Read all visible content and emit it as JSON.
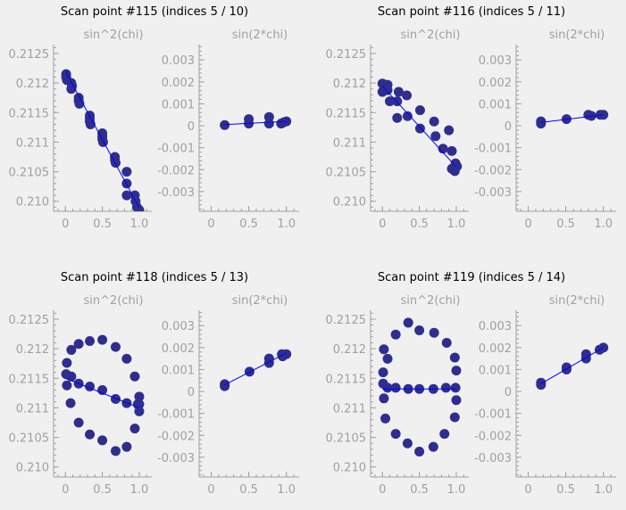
{
  "style": {
    "background": "#f0f0f0",
    "marker_color": "#2e2e8f",
    "fit_color": "#0000ff",
    "axis_color": "#a0a0a0"
  },
  "chart_data": [
    {
      "type": "scatter",
      "title": "Scan point #115 (indices 5 / 10)",
      "subplots": [
        {
          "title": "sin^2(chi)",
          "xlim": [
            -0.16,
            1.17
          ],
          "ylim": [
            0.20983,
            0.21265
          ],
          "xticks": [
            "0",
            "0.5",
            "1.0"
          ],
          "yticks": [
            "0.2125",
            "0.212",
            "0.2115",
            "0.211",
            "0.2105",
            "0.210"
          ],
          "points": [
            [
              0.01,
              0.21215
            ],
            [
              0.01,
              0.2121
            ],
            [
              0.02,
              0.21205
            ],
            [
              0.08,
              0.212
            ],
            [
              0.08,
              0.2119
            ],
            [
              0.09,
              0.21195
            ],
            [
              0.18,
              0.21175
            ],
            [
              0.18,
              0.2117
            ],
            [
              0.19,
              0.21165
            ],
            [
              0.33,
              0.21145
            ],
            [
              0.33,
              0.2114
            ],
            [
              0.33,
              0.21135
            ],
            [
              0.34,
              0.2113
            ],
            [
              0.5,
              0.21115
            ],
            [
              0.5,
              0.2111
            ],
            [
              0.5,
              0.21105
            ],
            [
              0.51,
              0.211
            ],
            [
              0.67,
              0.21075
            ],
            [
              0.67,
              0.2107
            ],
            [
              0.68,
              0.21065
            ],
            [
              0.83,
              0.2105
            ],
            [
              0.83,
              0.2103
            ],
            [
              0.83,
              0.2101
            ],
            [
              0.94,
              0.2101
            ],
            [
              0.95,
              0.21
            ],
            [
              0.97,
              0.2099
            ],
            [
              1.0,
              0.20985
            ]
          ],
          "fit": [
            [
              0.0,
              0.2122
            ],
            [
              1.0,
              0.20989
            ]
          ]
        },
        {
          "title": "sin(2*chi)",
          "xlim": [
            -0.16,
            1.17
          ],
          "ylim": [
            -0.0039,
            0.0037
          ],
          "xticks": [
            "0",
            "0.5",
            "1.0"
          ],
          "yticks": [
            "0.003",
            "0.002",
            "0.001",
            "0",
            "-0.001",
            "-0.002",
            "-0.003"
          ],
          "points": [
            [
              0.18,
              3e-05
            ],
            [
              0.5,
              0.0001
            ],
            [
              0.5,
              0.0003
            ],
            [
              0.77,
              0.0001
            ],
            [
              0.77,
              0.0004
            ],
            [
              0.93,
              0.0001
            ],
            [
              0.96,
              0.00015
            ],
            [
              1.0,
              0.0002
            ]
          ],
          "fit": [
            [
              0.18,
              5e-05
            ],
            [
              1.0,
              0.0002
            ]
          ]
        }
      ]
    },
    {
      "type": "scatter",
      "title": "Scan point #116 (indices 5 / 11)",
      "subplots": [
        {
          "title": "sin^2(chi)",
          "xlim": [
            -0.16,
            1.17
          ],
          "ylim": [
            0.20983,
            0.21265
          ],
          "xticks": [
            "0",
            "0.5",
            "1.0"
          ],
          "yticks": [
            "0.2125",
            "0.212",
            "0.2115",
            "0.211",
            "0.2105",
            "0.210"
          ],
          "points": [
            [
              0.0,
              0.21199
            ],
            [
              0.02,
              0.21195
            ],
            [
              0.07,
              0.21197
            ],
            [
              0.0,
              0.21185
            ],
            [
              0.07,
              0.21188
            ],
            [
              0.1,
              0.21169
            ],
            [
              0.2,
              0.21169
            ],
            [
              0.22,
              0.21185
            ],
            [
              0.33,
              0.21179
            ],
            [
              0.34,
              0.21144
            ],
            [
              0.2,
              0.21141
            ],
            [
              0.51,
              0.21154
            ],
            [
              0.51,
              0.21123
            ],
            [
              0.7,
              0.21135
            ],
            [
              0.72,
              0.2111
            ],
            [
              0.9,
              0.2112
            ],
            [
              0.82,
              0.21089
            ],
            [
              0.94,
              0.21085
            ],
            [
              0.99,
              0.21064
            ],
            [
              0.98,
              0.21051
            ],
            [
              0.94,
              0.21055
            ],
            [
              1.01,
              0.21059
            ]
          ],
          "fit": [
            [
              0.0,
              0.21195
            ],
            [
              1.0,
              0.21058
            ]
          ]
        },
        {
          "title": "sin(2*chi)",
          "xlim": [
            -0.16,
            1.17
          ],
          "ylim": [
            -0.0039,
            0.0037
          ],
          "xticks": [
            "0",
            "0.5",
            "1.0"
          ],
          "yticks": [
            "0.003",
            "0.002",
            "0.001",
            "0",
            "-0.001",
            "-0.002",
            "-0.003"
          ],
          "points": [
            [
              0.17,
              0.0002
            ],
            [
              0.17,
              0.0001
            ],
            [
              0.51,
              0.0003
            ],
            [
              0.8,
              0.0005
            ],
            [
              0.84,
              0.00045
            ],
            [
              0.96,
              0.0005
            ],
            [
              1.0,
              0.0005
            ]
          ],
          "fit": [
            [
              0.17,
              0.00015
            ],
            [
              1.0,
              0.0005
            ]
          ]
        }
      ]
    },
    {
      "type": "scatter",
      "title": "Scan point #118 (indices 5 / 13)",
      "subplots": [
        {
          "title": "sin^2(chi)",
          "xlim": [
            -0.16,
            1.17
          ],
          "ylim": [
            0.20983,
            0.21265
          ],
          "xticks": [
            "0",
            "0.5",
            "1.0"
          ],
          "yticks": [
            "0.2125",
            "0.212",
            "0.2115",
            "0.211",
            "0.2105",
            "0.210"
          ],
          "points": [
            [
              0.02,
              0.21176
            ],
            [
              0.08,
              0.21198
            ],
            [
              0.18,
              0.21208
            ],
            [
              0.33,
              0.21213
            ],
            [
              0.5,
              0.21215
            ],
            [
              0.68,
              0.21203
            ],
            [
              0.83,
              0.21183
            ],
            [
              0.94,
              0.21153
            ],
            [
              1.0,
              0.21119
            ],
            [
              1.0,
              0.21106
            ],
            [
              1.0,
              0.21094
            ],
            [
              0.94,
              0.21065
            ],
            [
              0.83,
              0.21034
            ],
            [
              0.68,
              0.21027
            ],
            [
              0.5,
              0.21045
            ],
            [
              0.33,
              0.21055
            ],
            [
              0.18,
              0.21075
            ],
            [
              0.07,
              0.21108
            ],
            [
              0.02,
              0.21138
            ],
            [
              0.01,
              0.21157
            ],
            [
              0.08,
              0.21153
            ],
            [
              0.18,
              0.21141
            ],
            [
              0.33,
              0.21136
            ],
            [
              0.5,
              0.2113
            ],
            [
              0.68,
              0.21115
            ],
            [
              0.83,
              0.21108
            ],
            [
              0.98,
              0.21106
            ]
          ],
          "fit": [
            [
              0.0,
              0.2115
            ],
            [
              1.0,
              0.211
            ]
          ]
        },
        {
          "title": "sin(2*chi)",
          "xlim": [
            -0.16,
            1.17
          ],
          "ylim": [
            -0.0039,
            0.0037
          ],
          "xticks": [
            "0",
            "0.5",
            "1.0"
          ],
          "yticks": [
            "0.003",
            "0.002",
            "0.001",
            "0",
            "-0.001",
            "-0.002",
            "-0.003"
          ],
          "points": [
            [
              0.18,
              0.00033
            ],
            [
              0.18,
              0.00024
            ],
            [
              0.51,
              0.0009
            ],
            [
              0.77,
              0.0015
            ],
            [
              0.77,
              0.0013
            ],
            [
              0.94,
              0.0017
            ],
            [
              0.95,
              0.0016
            ],
            [
              1.0,
              0.0017
            ]
          ],
          "fit": [
            [
              0.18,
              0.0003
            ],
            [
              1.0,
              0.00175
            ]
          ]
        }
      ]
    },
    {
      "type": "scatter",
      "title": "Scan point #119 (indices 5 / 14)",
      "subplots": [
        {
          "title": "sin^2(chi)",
          "xlim": [
            -0.16,
            1.17
          ],
          "ylim": [
            0.20983,
            0.21265
          ],
          "xticks": [
            "0",
            "0.5",
            "1.0"
          ],
          "yticks": [
            "0.2125",
            "0.212",
            "0.2115",
            "0.211",
            "0.2105",
            "0.210"
          ],
          "points": [
            [
              0.02,
              0.21199
            ],
            [
              0.07,
              0.21183
            ],
            [
              0.18,
              0.21224
            ],
            [
              0.35,
              0.21244
            ],
            [
              0.5,
              0.21231
            ],
            [
              0.7,
              0.21227
            ],
            [
              0.87,
              0.2121
            ],
            [
              0.98,
              0.21185
            ],
            [
              1.0,
              0.21163
            ],
            [
              1.0,
              0.21113
            ],
            [
              0.98,
              0.21084
            ],
            [
              0.84,
              0.21056
            ],
            [
              0.69,
              0.21034
            ],
            [
              0.5,
              0.21026
            ],
            [
              0.34,
              0.2104
            ],
            [
              0.18,
              0.21056
            ],
            [
              0.04,
              0.21082
            ],
            [
              0.01,
              0.2116
            ],
            [
              0.01,
              0.21141
            ],
            [
              0.07,
              0.21134
            ],
            [
              0.18,
              0.21134
            ],
            [
              0.35,
              0.21132
            ],
            [
              0.5,
              0.21132
            ],
            [
              0.69,
              0.21132
            ],
            [
              0.86,
              0.21134
            ],
            [
              0.99,
              0.21134
            ],
            [
              0.02,
              0.21116
            ]
          ],
          "fit": [
            [
              0.0,
              0.21132
            ],
            [
              1.0,
              0.21132
            ]
          ]
        },
        {
          "title": "sin(2*chi)",
          "xlim": [
            -0.16,
            1.17
          ],
          "ylim": [
            -0.0039,
            0.0037
          ],
          "xticks": [
            "0",
            "0.5",
            "1.0"
          ],
          "yticks": [
            "0.003",
            "0.002",
            "0.001",
            "0",
            "-0.001",
            "-0.002",
            "-0.003"
          ],
          "points": [
            [
              0.17,
              0.0003
            ],
            [
              0.17,
              0.0004
            ],
            [
              0.51,
              0.001
            ],
            [
              0.51,
              0.0011
            ],
            [
              0.77,
              0.0015
            ],
            [
              0.77,
              0.0017
            ],
            [
              0.95,
              0.0019
            ],
            [
              1.0,
              0.002
            ]
          ],
          "fit": [
            [
              0.17,
              0.00035
            ],
            [
              1.0,
              0.002
            ]
          ]
        }
      ]
    }
  ]
}
